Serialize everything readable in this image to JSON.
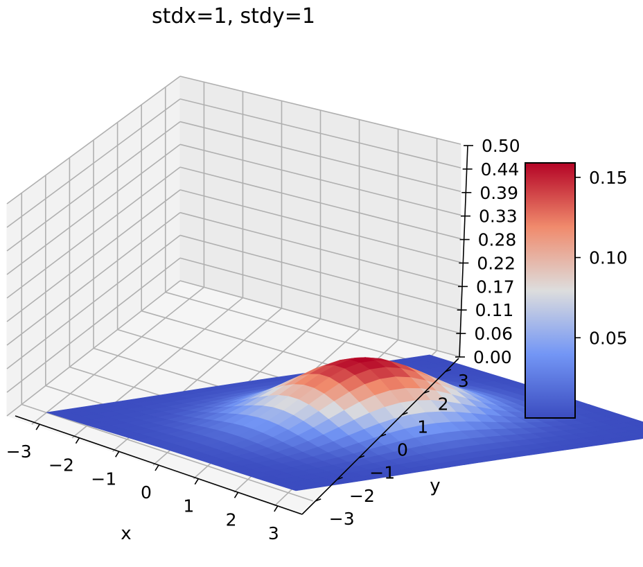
{
  "chart_data": {
    "type": "surface",
    "title": "stdx=1, stdy=1",
    "xlabel": "x",
    "ylabel": "y",
    "zlabel": "",
    "xlim": [
      -3,
      3
    ],
    "ylim": [
      -3,
      3
    ],
    "zlim": [
      0.0,
      0.5
    ],
    "x_ticks": [
      "−3",
      "−2",
      "−1",
      "0",
      "1",
      "2",
      "3"
    ],
    "y_ticks": [
      "−3",
      "−2",
      "−1",
      "0",
      "1",
      "2",
      "3"
    ],
    "z_ticks": [
      "0.00",
      "0.06",
      "0.11",
      "0.17",
      "0.22",
      "0.28",
      "0.33",
      "0.39",
      "0.44",
      "0.50"
    ],
    "function": "2D Gaussian, mean (0,0), stdx=1, stdy=1",
    "peak_value": 0.159,
    "grid_points": 25,
    "colormap": "coolwarm",
    "colorbar": {
      "min": 0.0,
      "max": 0.159,
      "ticks": [
        "0.05",
        "0.10",
        "0.15"
      ],
      "tick_values": [
        0.05,
        0.1,
        0.15
      ],
      "low_color": "#3b4cc0",
      "mid_color": "#dddddd",
      "high_color": "#b40426"
    }
  }
}
